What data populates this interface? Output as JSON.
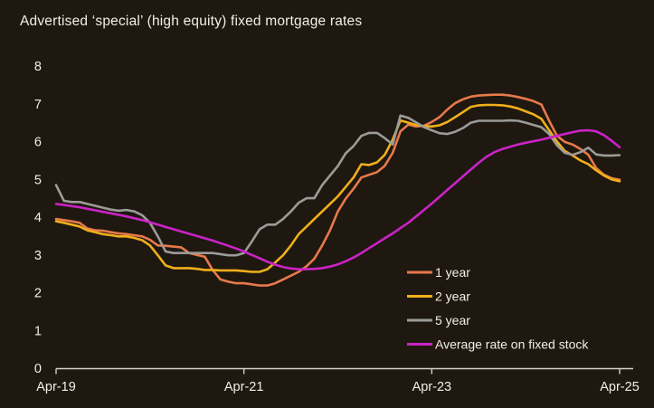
{
  "title": "Advertised ‘special’ (high equity) fixed mortgage rates",
  "colors": {
    "background": "#1e1810",
    "text": "#f3eee4",
    "axis": "#d6d0c6",
    "series_1yr": "#e8794b",
    "series_2yr": "#f0af1b",
    "series_5yr": "#9b9b99",
    "series_avg": "#cb23c6"
  },
  "chart_data": {
    "type": "line",
    "title": "Advertised ‘special’ (high equity) fixed mortgage rates",
    "x_frequency": "monthly",
    "x_start": "Apr-2019",
    "x_end": "Apr-2025",
    "x_tick_labels": [
      "Apr-19",
      "Apr-21",
      "Apr-23",
      "Apr-25"
    ],
    "x_tick_indices": [
      0,
      24,
      48,
      72
    ],
    "ylim": [
      0,
      8
    ],
    "y_ticks": [
      0,
      1,
      2,
      3,
      4,
      5,
      6,
      7,
      8
    ],
    "grid": false,
    "legend_position": "inside-bottom-right",
    "series": [
      {
        "name": "1 year",
        "color": "#e8794b",
        "values": [
          3.95,
          3.92,
          3.89,
          3.85,
          3.7,
          3.65,
          3.64,
          3.6,
          3.57,
          3.55,
          3.52,
          3.49,
          3.4,
          3.25,
          3.24,
          3.22,
          3.2,
          3.05,
          3.0,
          2.95,
          2.6,
          2.35,
          2.29,
          2.25,
          2.25,
          2.22,
          2.19,
          2.19,
          2.25,
          2.35,
          2.45,
          2.55,
          2.7,
          2.9,
          3.25,
          3.65,
          4.15,
          4.49,
          4.75,
          5.05,
          5.12,
          5.19,
          5.36,
          5.7,
          6.27,
          6.45,
          6.4,
          6.42,
          6.52,
          6.65,
          6.85,
          7.02,
          7.12,
          7.19,
          7.22,
          7.23,
          7.24,
          7.24,
          7.22,
          7.18,
          7.13,
          7.07,
          6.98,
          6.55,
          6.15,
          5.99,
          5.92,
          5.8,
          5.65,
          5.3,
          5.12,
          5.03,
          4.99
        ]
      },
      {
        "name": "2 year",
        "color": "#f0af1b",
        "values": [
          3.89,
          3.85,
          3.8,
          3.75,
          3.65,
          3.6,
          3.55,
          3.52,
          3.49,
          3.49,
          3.45,
          3.39,
          3.25,
          2.99,
          2.72,
          2.65,
          2.65,
          2.65,
          2.63,
          2.6,
          2.6,
          2.59,
          2.59,
          2.59,
          2.57,
          2.55,
          2.55,
          2.62,
          2.8,
          2.99,
          3.25,
          3.55,
          3.75,
          3.95,
          4.15,
          4.35,
          4.55,
          4.8,
          5.05,
          5.4,
          5.38,
          5.45,
          5.65,
          6.05,
          6.56,
          6.5,
          6.44,
          6.41,
          6.4,
          6.43,
          6.52,
          6.65,
          6.78,
          6.92,
          6.96,
          6.97,
          6.97,
          6.96,
          6.93,
          6.88,
          6.8,
          6.72,
          6.6,
          6.3,
          6.0,
          5.75,
          5.63,
          5.5,
          5.4,
          5.24,
          5.1,
          5.0,
          4.95
        ]
      },
      {
        "name": "5 year",
        "color": "#9b9b99",
        "values": [
          4.85,
          4.43,
          4.4,
          4.4,
          4.35,
          4.3,
          4.25,
          4.2,
          4.17,
          4.19,
          4.15,
          4.05,
          3.85,
          3.49,
          3.09,
          3.05,
          3.05,
          3.05,
          3.05,
          3.05,
          3.05,
          3.02,
          2.99,
          2.99,
          3.05,
          3.35,
          3.68,
          3.8,
          3.8,
          3.95,
          4.15,
          4.38,
          4.5,
          4.5,
          4.85,
          5.1,
          5.35,
          5.69,
          5.88,
          6.15,
          6.23,
          6.23,
          6.09,
          5.92,
          6.69,
          6.63,
          6.51,
          6.38,
          6.3,
          6.22,
          6.2,
          6.26,
          6.36,
          6.5,
          6.55,
          6.55,
          6.55,
          6.55,
          6.56,
          6.55,
          6.5,
          6.44,
          6.38,
          6.2,
          5.9,
          5.7,
          5.65,
          5.72,
          5.84,
          5.66,
          5.63,
          5.63,
          5.64
        ]
      },
      {
        "name": "Average rate on fixed stock",
        "color": "#cb23c6",
        "values": [
          4.35,
          4.32,
          4.29,
          4.26,
          4.22,
          4.18,
          4.14,
          4.1,
          4.06,
          4.02,
          3.97,
          3.92,
          3.86,
          3.8,
          3.74,
          3.68,
          3.62,
          3.56,
          3.5,
          3.44,
          3.38,
          3.31,
          3.24,
          3.17,
          3.09,
          3.0,
          2.91,
          2.82,
          2.74,
          2.68,
          2.64,
          2.62,
          2.62,
          2.63,
          2.65,
          2.69,
          2.75,
          2.83,
          2.93,
          3.05,
          3.18,
          3.31,
          3.44,
          3.57,
          3.71,
          3.85,
          4.02,
          4.19,
          4.36,
          4.54,
          4.72,
          4.9,
          5.08,
          5.26,
          5.44,
          5.6,
          5.72,
          5.8,
          5.86,
          5.92,
          5.97,
          6.01,
          6.05,
          6.1,
          6.15,
          6.2,
          6.25,
          6.29,
          6.3,
          6.27,
          6.17,
          6.02,
          5.85
        ]
      }
    ]
  }
}
